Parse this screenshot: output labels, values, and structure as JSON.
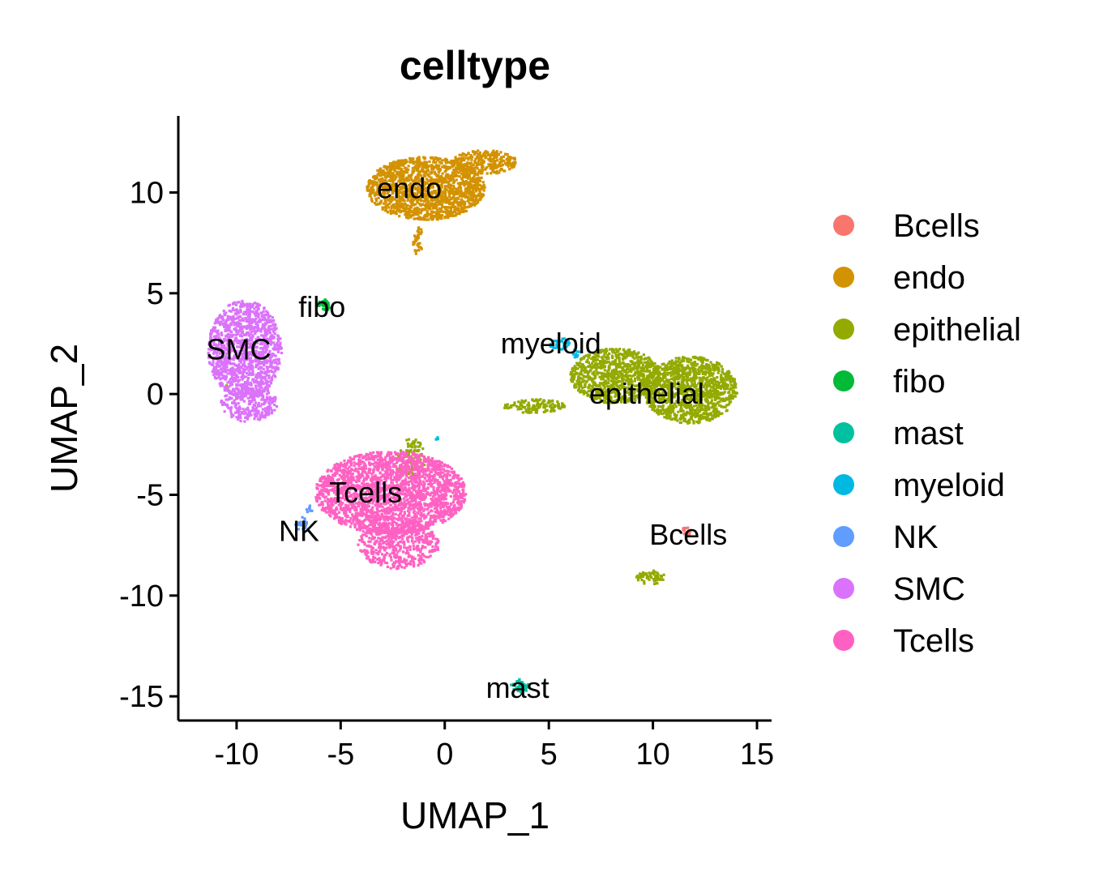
{
  "chart_data": {
    "type": "scatter",
    "title": "celltype",
    "xlabel": "UMAP_1",
    "ylabel": "UMAP_2",
    "xlim": [
      -12.8,
      15.7
    ],
    "ylim": [
      -16.2,
      13.8
    ],
    "xticks": [
      -10,
      -5,
      0,
      5,
      10,
      15
    ],
    "xtick_labels": [
      "-10",
      "-5",
      "0",
      "5",
      "10",
      "15"
    ],
    "yticks": [
      -15,
      -10,
      -5,
      0,
      5,
      10
    ],
    "ytick_labels": [
      "-15",
      "-10",
      "-5",
      "0",
      "5",
      "10"
    ],
    "grid": false,
    "legend_position": "right",
    "series": [
      {
        "name": "Bcells",
        "color": "#F8766D",
        "clusters": [
          {
            "x": 11.6,
            "y": -6.8,
            "rx": 0.25,
            "ry": 0.2,
            "n": 15
          }
        ]
      },
      {
        "name": "endo",
        "color": "#D39200",
        "clusters": [
          {
            "x": -0.9,
            "y": 10.2,
            "rx": 2.9,
            "ry": 1.6,
            "n": 1600
          },
          {
            "x": 1.9,
            "y": 11.5,
            "rx": 1.6,
            "ry": 0.6,
            "n": 280
          },
          {
            "x": -1.3,
            "y": 7.6,
            "rx": 0.25,
            "ry": 0.8,
            "n": 40
          }
        ]
      },
      {
        "name": "epithelial",
        "color": "#93AA00",
        "clusters": [
          {
            "x": 8.2,
            "y": 0.9,
            "rx": 2.2,
            "ry": 1.4,
            "n": 900
          },
          {
            "x": 11.8,
            "y": 0.2,
            "rx": 2.3,
            "ry": 1.7,
            "n": 1200
          },
          {
            "x": 4.3,
            "y": -0.6,
            "rx": 1.5,
            "ry": 0.35,
            "n": 130
          },
          {
            "x": 9.9,
            "y": -9.1,
            "rx": 0.7,
            "ry": 0.35,
            "n": 60
          },
          {
            "x": -1.6,
            "y": -3.2,
            "rx": 0.7,
            "ry": 1.0,
            "n": 110
          },
          {
            "x": -10.5,
            "y": 0.3,
            "rx": 0.15,
            "ry": 0.15,
            "n": 6
          }
        ]
      },
      {
        "name": "fibo",
        "color": "#00BA38",
        "clusters": [
          {
            "x": -5.8,
            "y": 4.4,
            "rx": 0.35,
            "ry": 0.3,
            "n": 35
          }
        ]
      },
      {
        "name": "mast",
        "color": "#00C19F",
        "clusters": [
          {
            "x": 3.6,
            "y": -14.5,
            "rx": 0.45,
            "ry": 0.35,
            "n": 45
          }
        ]
      },
      {
        "name": "myeloid",
        "color": "#00B9E3",
        "clusters": [
          {
            "x": 5.5,
            "y": 2.5,
            "rx": 0.5,
            "ry": 0.3,
            "n": 35
          },
          {
            "x": 6.3,
            "y": 2.0,
            "rx": 0.2,
            "ry": 0.2,
            "n": 10
          },
          {
            "x": -0.4,
            "y": -2.2,
            "rx": 0.1,
            "ry": 0.1,
            "n": 4
          }
        ]
      },
      {
        "name": "NK",
        "color": "#619CFF",
        "clusters": [
          {
            "x": -6.9,
            "y": -6.4,
            "rx": 0.3,
            "ry": 0.4,
            "n": 20
          },
          {
            "x": -6.5,
            "y": -5.7,
            "rx": 0.15,
            "ry": 0.2,
            "n": 8
          }
        ]
      },
      {
        "name": "SMC",
        "color": "#DB72FB",
        "clusters": [
          {
            "x": -9.6,
            "y": 2.2,
            "rx": 1.8,
            "ry": 2.5,
            "n": 1200
          },
          {
            "x": -9.4,
            "y": -0.5,
            "rx": 1.4,
            "ry": 0.9,
            "n": 250
          }
        ]
      },
      {
        "name": "Tcells",
        "color": "#FF61C3",
        "clusters": [
          {
            "x": -2.6,
            "y": -4.9,
            "rx": 3.7,
            "ry": 2.1,
            "n": 2400
          },
          {
            "x": -2.2,
            "y": -7.5,
            "rx": 2.0,
            "ry": 1.2,
            "n": 500
          }
        ]
      }
    ],
    "labels": [
      {
        "text": "endo",
        "x": -1.7,
        "y": 10.2
      },
      {
        "text": "fibo",
        "x": -5.9,
        "y": 4.3
      },
      {
        "text": "SMC",
        "x": -9.9,
        "y": 2.2
      },
      {
        "text": "myeloid",
        "x": 5.1,
        "y": 2.5
      },
      {
        "text": "epithelial",
        "x": 9.7,
        "y": 0.0
      },
      {
        "text": "Tcells",
        "x": -3.8,
        "y": -4.9
      },
      {
        "text": "NK",
        "x": -7.0,
        "y": -6.8
      },
      {
        "text": "Bcells",
        "x": 11.7,
        "y": -7.0
      },
      {
        "text": "mast",
        "x": 3.5,
        "y": -14.6
      }
    ]
  }
}
